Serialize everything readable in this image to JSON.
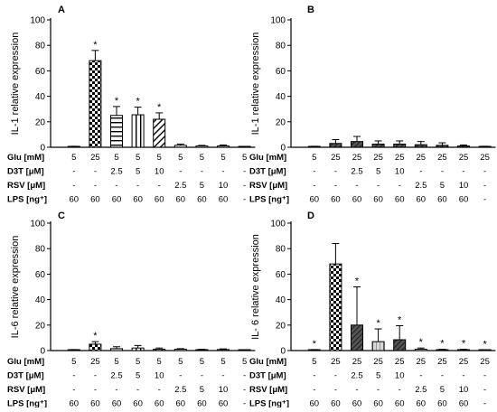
{
  "patterns": {
    "checker": "checker",
    "hstripe": "hstripe",
    "vstripe": "vstripe",
    "diag": "diag",
    "solid_dark": "solid_dark",
    "solid_light": "solid_light",
    "dots": "dots",
    "none": "none"
  },
  "row_labels": [
    "Glu [mM]",
    "D3T [μM]",
    "RSV [μM]",
    "LPS [ng⁺]"
  ],
  "chart_data": [
    {
      "type": "bar",
      "panel": "A",
      "ylabel": "IL-1 relative expression",
      "ylim": [
        0,
        100
      ],
      "yticks": [
        "0",
        "20",
        "40",
        "60",
        "80",
        "100"
      ],
      "conditions": [
        [
          "5",
          "-",
          "-",
          "60"
        ],
        [
          "25",
          "-",
          "-",
          "60"
        ],
        [
          "5",
          "2.5",
          "-",
          "60"
        ],
        [
          "5",
          "5",
          "-",
          "60"
        ],
        [
          "5",
          "10",
          "-",
          "60"
        ],
        [
          "5",
          "-",
          "2.5",
          "60"
        ],
        [
          "5",
          "-",
          "5",
          "60"
        ],
        [
          "5",
          "-",
          "10",
          "60"
        ],
        [
          "5",
          "-",
          "-",
          "-"
        ]
      ],
      "values": [
        0.5,
        68,
        25,
        25.5,
        22,
        1.5,
        1,
        1,
        0.3
      ],
      "errors": [
        0.3,
        8,
        7,
        6,
        5,
        1,
        0.5,
        0.8,
        0.2
      ],
      "patterns": [
        "none",
        "checker",
        "hstripe",
        "vstripe",
        "diag",
        "dots",
        "none",
        "none",
        "none"
      ],
      "significant": [
        false,
        true,
        true,
        true,
        true,
        false,
        false,
        false,
        false
      ]
    },
    {
      "type": "bar",
      "panel": "B",
      "ylabel": "IL-1 relative expression",
      "ylim": [
        0,
        100
      ],
      "yticks": [
        "0",
        "20",
        "40",
        "60",
        "80",
        "100"
      ],
      "conditions": [
        [
          "5",
          "-",
          "-",
          "60"
        ],
        [
          "25",
          "-",
          "-",
          "60"
        ],
        [
          "25",
          "2.5",
          "-",
          "60"
        ],
        [
          "25",
          "5",
          "-",
          "60"
        ],
        [
          "25",
          "10",
          "-",
          "60"
        ],
        [
          "25",
          "-",
          "2.5",
          "60"
        ],
        [
          "25",
          "-",
          "5",
          "60"
        ],
        [
          "25",
          "-",
          "10",
          "60"
        ],
        [
          "25",
          "-",
          "-",
          "-"
        ]
      ],
      "values": [
        0.5,
        3,
        4.5,
        2.5,
        2.5,
        2,
        1.5,
        1,
        0.5
      ],
      "errors": [
        0.3,
        3,
        4,
        2.5,
        2.5,
        2.5,
        2,
        0.8,
        0.3
      ],
      "patterns": [
        "none",
        "solid_dark",
        "solid_dark",
        "solid_dark",
        "solid_dark",
        "solid_dark",
        "solid_dark",
        "solid_dark",
        "none"
      ],
      "significant": [
        false,
        false,
        false,
        false,
        false,
        false,
        false,
        false,
        false
      ]
    },
    {
      "type": "bar",
      "panel": "C",
      "ylabel": "IL-6 relative expression",
      "ylim": [
        0,
        100
      ],
      "yticks": [
        "0",
        "20",
        "40",
        "60",
        "80",
        "100"
      ],
      "conditions": [
        [
          "5",
          "-",
          "-",
          "60"
        ],
        [
          "25",
          "-",
          "-",
          "60"
        ],
        [
          "5",
          "2.5",
          "-",
          "60"
        ],
        [
          "5",
          "5",
          "-",
          "60"
        ],
        [
          "5",
          "10",
          "-",
          "60"
        ],
        [
          "5",
          "-",
          "2.5",
          "60"
        ],
        [
          "5",
          "-",
          "5",
          "60"
        ],
        [
          "5",
          "-",
          "10",
          "60"
        ],
        [
          "5",
          "-",
          "-",
          "-"
        ]
      ],
      "values": [
        0.5,
        5,
        1.5,
        2,
        1,
        1,
        0.5,
        0.8,
        0.2
      ],
      "errors": [
        0.3,
        2,
        1.5,
        2,
        1,
        0.5,
        0.5,
        0.5,
        0.2
      ],
      "patterns": [
        "none",
        "checker",
        "hstripe",
        "vstripe",
        "diag",
        "dots",
        "none",
        "none",
        "none"
      ],
      "significant": [
        false,
        true,
        false,
        false,
        false,
        false,
        false,
        false,
        false
      ]
    },
    {
      "type": "bar",
      "panel": "D",
      "ylabel": "IL- 6 relative expression",
      "ylim": [
        0,
        100
      ],
      "yticks": [
        "0",
        "20",
        "40",
        "60",
        "80",
        "100"
      ],
      "conditions": [
        [
          "5",
          "-",
          "-",
          "60"
        ],
        [
          "25",
          "-",
          "-",
          "60"
        ],
        [
          "25",
          "2.5",
          "-",
          "60"
        ],
        [
          "25",
          "5",
          "-",
          "60"
        ],
        [
          "25",
          "10",
          "-",
          "60"
        ],
        [
          "25",
          "-",
          "2.5",
          "60"
        ],
        [
          "25",
          "-",
          "5",
          "60"
        ],
        [
          "25",
          "-",
          "10",
          "60"
        ],
        [
          "25",
          "-",
          "-",
          "-"
        ]
      ],
      "values": [
        0.5,
        68,
        20,
        7,
        8.5,
        1,
        0.5,
        0.5,
        0.3
      ],
      "errors": [
        0.3,
        16,
        30,
        10,
        11,
        1,
        0.5,
        0.5,
        0.2
      ],
      "patterns": [
        "none",
        "checker",
        "solid_dark",
        "solid_light",
        "solid_dark",
        "none",
        "none",
        "none",
        "none"
      ],
      "significant": [
        true,
        false,
        true,
        true,
        true,
        true,
        true,
        true,
        true
      ]
    }
  ]
}
